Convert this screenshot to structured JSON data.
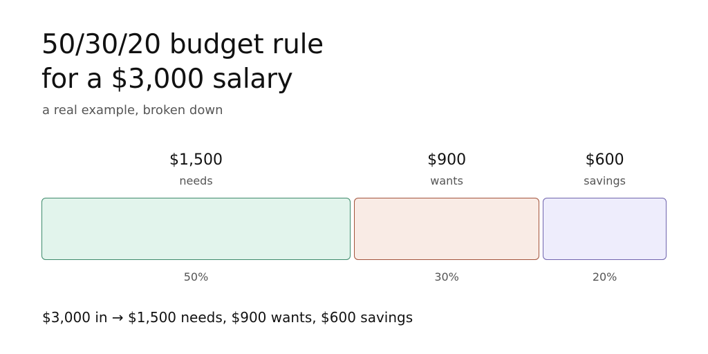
{
  "header": {
    "title_line1": "50/30/20 budget rule",
    "title_line2": "for a $3,000 salary",
    "subtitle": "a real example, broken down"
  },
  "summary": "$3,000 in → $1,500 needs, $900 wants, $600 savings",
  "chart_data": {
    "type": "bar",
    "orientation": "horizontal-stacked",
    "total": 3000,
    "categories": [
      "needs",
      "wants",
      "savings"
    ],
    "values": [
      1500,
      900,
      600
    ],
    "value_labels": [
      "$1,500",
      "$900",
      "$600"
    ],
    "percent_labels": [
      "50%",
      "30%",
      "20%"
    ],
    "percents": [
      50,
      30,
      20
    ],
    "colors": {
      "needs": {
        "fill": "#e2f4ec",
        "stroke": "#3d8a6a"
      },
      "wants": {
        "fill": "#f9ebe5",
        "stroke": "#a2523a"
      },
      "savings": {
        "fill": "#eeedfc",
        "stroke": "#6f63ad"
      }
    },
    "title": "",
    "xlabel": "",
    "ylabel": "",
    "grid": false,
    "legend": "none"
  }
}
